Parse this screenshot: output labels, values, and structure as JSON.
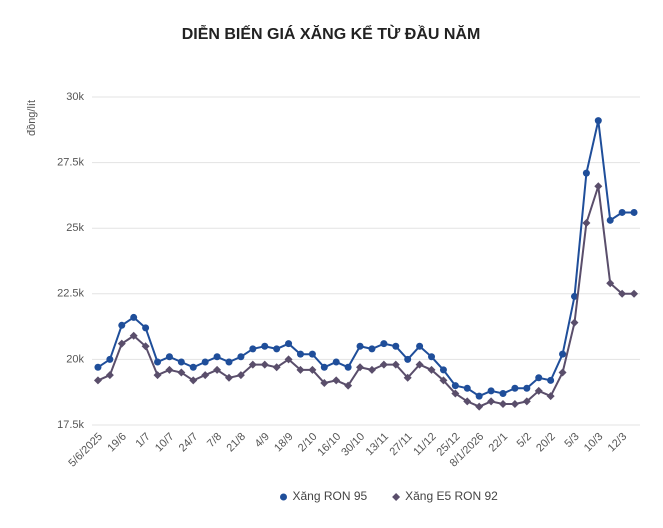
{
  "chart_data": {
    "type": "line",
    "title": "DIỄN BIẾN GIÁ XĂNG KỂ TỪ ĐẦU NĂM",
    "y_label": "đồng/lít",
    "categories": [
      "5/6/2025",
      null,
      "19/6",
      null,
      "1/7",
      null,
      "10/7",
      null,
      "24/7",
      null,
      "7/8",
      null,
      "21/8",
      null,
      "4/9",
      null,
      "18/9",
      null,
      "2/10",
      null,
      "16/10",
      null,
      "30/10",
      null,
      "13/11",
      null,
      "27/11",
      null,
      "11/12",
      null,
      "25/12",
      null,
      "8/1/2026",
      null,
      "22/1",
      null,
      "5/2",
      null,
      "20/2",
      null,
      "5/3",
      null,
      "10/3",
      null,
      "12/3",
      null
    ],
    "series": [
      {
        "name": "Xăng RON 95",
        "color": "#1f4e9a",
        "marker": "circle",
        "values": [
          19700,
          20000,
          21300,
          21600,
          21200,
          19900,
          20100,
          19900,
          19700,
          19900,
          20100,
          19900,
          20100,
          20400,
          20500,
          20400,
          20600,
          20200,
          20200,
          19700,
          19900,
          19700,
          20500,
          20400,
          20600,
          20500,
          20000,
          20500,
          20100,
          19600,
          19000,
          18900,
          18600,
          18800,
          18700,
          18900,
          18900,
          19300,
          19200,
          20200,
          22400,
          27100,
          29100,
          25300,
          25600,
          25600
        ]
      },
      {
        "name": "Xăng E5 RON 92",
        "color": "#5a4e6b",
        "marker": "diamond",
        "values": [
          19200,
          19400,
          20600,
          20900,
          20500,
          19400,
          19600,
          19500,
          19200,
          19400,
          19600,
          19300,
          19400,
          19800,
          19800,
          19700,
          20000,
          19600,
          19600,
          19100,
          19200,
          19000,
          19700,
          19600,
          19800,
          19800,
          19300,
          19800,
          19600,
          19200,
          18700,
          18400,
          18200,
          18400,
          18300,
          18300,
          18400,
          18800,
          18600,
          19500,
          21400,
          25200,
          26600,
          22900,
          22500,
          22500
        ]
      }
    ],
    "ylim": [
      17500,
      30000
    ],
    "yticks": [
      {
        "value": 17500,
        "label": "17.5k"
      },
      {
        "value": 20000,
        "label": "20k"
      },
      {
        "value": 22500,
        "label": "22.5k"
      },
      {
        "value": 25000,
        "label": "25k"
      },
      {
        "value": 27500,
        "label": "27.5k"
      },
      {
        "value": 30000,
        "label": "30k"
      }
    ],
    "grid": true,
    "legend": "bottom"
  }
}
